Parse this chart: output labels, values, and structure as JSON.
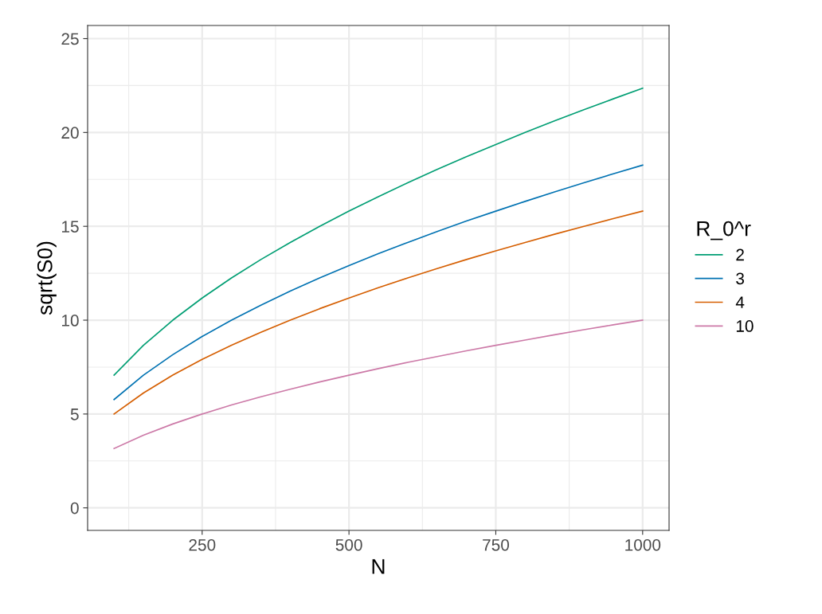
{
  "chart_data": {
    "type": "line",
    "xlabel": "N",
    "ylabel": "sqrt(S0)",
    "legend_title": "R_0^r",
    "x": [
      100,
      150,
      200,
      250,
      300,
      350,
      400,
      450,
      500,
      550,
      600,
      650,
      700,
      750,
      800,
      850,
      900,
      950,
      1000
    ],
    "series": [
      {
        "name": "2",
        "color": "#009e73",
        "values": [
          7.07,
          8.66,
          10,
          11.18,
          12.25,
          13.23,
          14.14,
          15,
          15.81,
          16.58,
          17.32,
          18.03,
          18.71,
          19.36,
          20,
          20.62,
          21.21,
          21.79,
          22.36
        ]
      },
      {
        "name": "3",
        "color": "#0072b2",
        "values": [
          5.77,
          7.07,
          8.16,
          9.13,
          10,
          10.8,
          11.55,
          12.25,
          12.91,
          13.54,
          14.14,
          14.72,
          15.28,
          15.81,
          16.33,
          16.83,
          17.32,
          17.8,
          18.26
        ]
      },
      {
        "name": "4",
        "color": "#d55e00",
        "values": [
          5,
          6.12,
          7.07,
          7.91,
          8.66,
          9.35,
          10,
          10.61,
          11.18,
          11.73,
          12.25,
          12.75,
          13.23,
          13.69,
          14.14,
          14.58,
          15,
          15.41,
          15.81
        ]
      },
      {
        "name": "10",
        "color": "#cc79a7",
        "values": [
          3.16,
          3.87,
          4.47,
          5,
          5.48,
          5.92,
          6.32,
          6.71,
          7.07,
          7.42,
          7.75,
          8.06,
          8.37,
          8.66,
          8.94,
          9.22,
          9.49,
          9.75,
          10
        ]
      }
    ],
    "xlim": [
      55,
      1045
    ],
    "ylim": [
      -1.2,
      25.7
    ],
    "xticks": [
      250,
      500,
      750,
      1000
    ],
    "yticks": [
      0,
      5,
      10,
      15,
      20,
      25
    ],
    "grid": true,
    "legend": "right",
    "marker": "none",
    "line_style": "solid"
  }
}
